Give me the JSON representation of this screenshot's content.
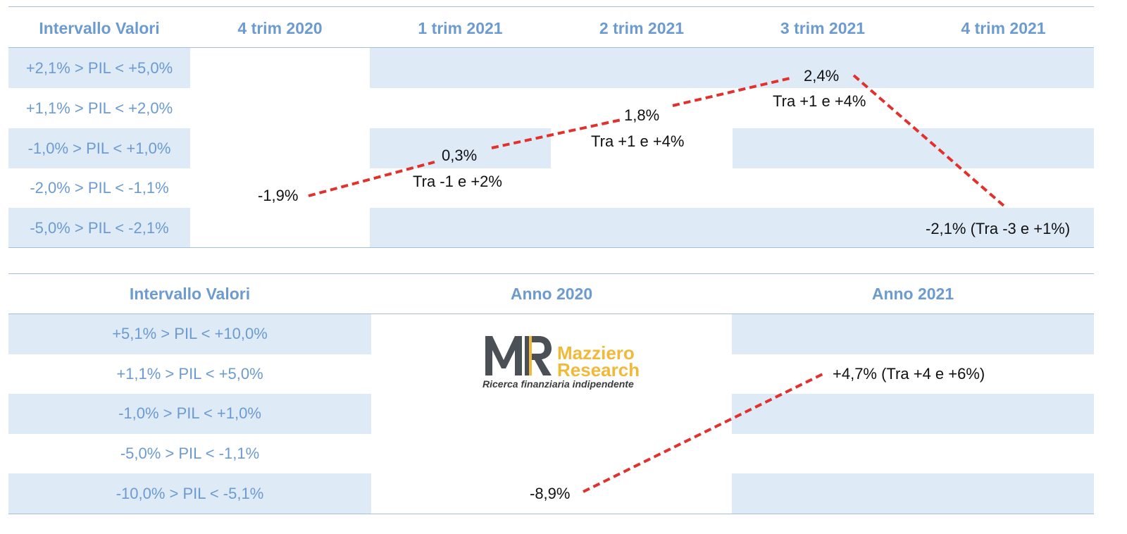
{
  "colors": {
    "header_text": "#6b9bd1",
    "band": "#deebf7",
    "line": "#e2312d",
    "logo_accent": "#f1b93a",
    "logo_dark": "#4b5056"
  },
  "chart_data": [
    {
      "type": "line",
      "grid": "table",
      "header_first": "Intervallo Valori",
      "categories": [
        "4 trim 2020",
        "1 trim 2021",
        "2 trim 2021",
        "3 trim 2021",
        "4 trim 2021"
      ],
      "range_rows": [
        "+2,1% > PIL < +5,0%",
        "+1,1% > PIL < +2,0%",
        "-1,0% > PIL < +1,0%",
        "-2,0% > PIL < -1,1%",
        "-5,0% > PIL < -2,1%"
      ],
      "values": [
        -1.9,
        0.3,
        1.8,
        2.4,
        -2.1
      ],
      "value_labels": [
        "-1,9%",
        "0,3%",
        "1,8%",
        "2,4%",
        "-2,1% (Tra -3 e +1%)"
      ],
      "annotations": [
        "",
        "Tra -1 e +2%",
        "Tra +1 e +4%",
        "Tra +1 e +4%",
        ""
      ]
    },
    {
      "type": "line",
      "grid": "table",
      "header_first": "Intervallo Valori",
      "categories": [
        "Anno 2020",
        "Anno 2021"
      ],
      "range_rows": [
        "+5,1% > PIL < +10,0%",
        "+1,1% > PIL < +5,0%",
        "-1,0% > PIL < +1,0%",
        "-5,0% > PIL < -1,1%",
        "-10,0% > PIL < -5,1%"
      ],
      "values": [
        -8.9,
        4.7
      ],
      "value_labels": [
        "-8,9%",
        "+4,7% (Tra +4 e +6%)"
      ]
    }
  ],
  "logo": {
    "mark": "MR",
    "name_line1": "Mazziero",
    "name_line2": "Research",
    "tagline": "Ricerca finanziaria indipendente"
  }
}
